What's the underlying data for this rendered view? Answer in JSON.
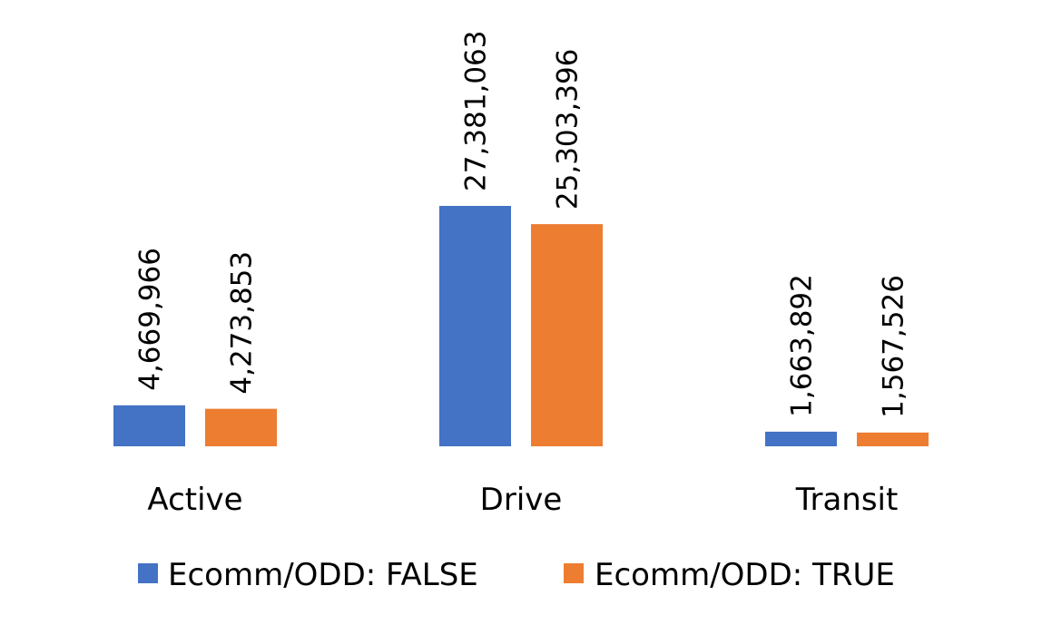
{
  "chart_data": {
    "type": "bar",
    "title": "",
    "xlabel": "",
    "ylabel": "",
    "categories": [
      "Active",
      "Drive",
      "Transit"
    ],
    "series": [
      {
        "name": "Ecomm/ODD: FALSE",
        "color": "#4472C4",
        "values": [
          4669966,
          27381063,
          1663892
        ],
        "labels": [
          "4,669,966",
          "27,381,063",
          "1,663,892"
        ]
      },
      {
        "name": "Ecomm/ODD: TRUE",
        "color": "#ED7D31",
        "values": [
          4273853,
          25303396,
          1567526
        ],
        "labels": [
          "4,273,853",
          "25,303,396",
          "1,567,526"
        ]
      }
    ],
    "ylim": [
      0,
      27381063
    ],
    "grid": false,
    "legend_position": "bottom",
    "data_label_orientation": "vertical"
  }
}
